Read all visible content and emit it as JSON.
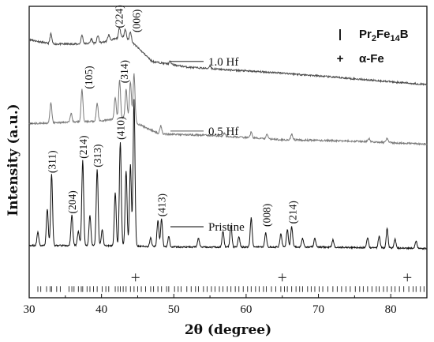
{
  "chart_data": {
    "type": "line",
    "xlabel": "2θ (degree)",
    "ylabel": "Intensity (a.u.)",
    "xlim": [
      30,
      85
    ],
    "xticks": [
      30,
      40,
      50,
      60,
      70,
      80
    ],
    "grid": false,
    "legend": {
      "placement": "top-right",
      "entries": [
        {
          "marker": "|",
          "label_main": "Pr",
          "sub1": "2",
          "label_mid": "Fe",
          "sub2": "14",
          "label_end": "B"
        },
        {
          "marker": "+",
          "label": "α-Fe"
        }
      ]
    },
    "series": [
      {
        "name": "1.0 Hf",
        "color": "#4a4a4a",
        "baseline": [
          [
            30,
            7.45
          ],
          [
            33,
            7.3
          ],
          [
            37,
            7.3
          ],
          [
            40,
            7.35
          ],
          [
            43,
            7.55
          ],
          [
            44.5,
            7.3
          ],
          [
            47,
            6.7
          ],
          [
            52,
            6.5
          ],
          [
            58,
            6.4
          ],
          [
            65,
            6.3
          ],
          [
            75,
            6.1
          ],
          [
            85,
            5.9
          ]
        ],
        "peaks": [
          [
            33.0,
            0.35
          ],
          [
            37.3,
            0.3
          ],
          [
            38.6,
            0.15
          ],
          [
            39.5,
            0.25
          ],
          [
            41.0,
            0.2
          ],
          [
            42.5,
            0.35
          ],
          [
            43.3,
            0.3
          ],
          [
            44.0,
            0.35
          ],
          [
            49.5,
            0.1
          ],
          [
            55.0,
            0.1
          ]
        ],
        "noise": 0.06
      },
      {
        "name": "0.5 Hf",
        "color": "#7a7a7a",
        "baseline": [
          [
            30,
            4.55
          ],
          [
            40,
            4.65
          ],
          [
            44,
            4.8
          ],
          [
            45,
            4.55
          ],
          [
            48,
            4.2
          ],
          [
            55,
            4.15
          ],
          [
            65,
            4.0
          ],
          [
            75,
            3.95
          ],
          [
            85,
            3.85
          ]
        ],
        "peaks": [
          [
            33.0,
            0.7
          ],
          [
            35.8,
            0.3
          ],
          [
            37.3,
            1.1
          ],
          [
            39.4,
            0.6
          ],
          [
            41.9,
            0.75
          ],
          [
            42.5,
            1.3
          ],
          [
            43.4,
            0.95
          ],
          [
            44.0,
            1.2
          ],
          [
            44.5,
            1.6
          ],
          [
            48.2,
            0.3
          ],
          [
            57.0,
            0.1
          ],
          [
            60.7,
            0.2
          ],
          [
            62.9,
            0.15
          ],
          [
            66.3,
            0.2
          ],
          [
            77.0,
            0.1
          ],
          [
            79.5,
            0.15
          ]
        ],
        "noise": 0.06
      },
      {
        "name": "Pristine",
        "color": "#111111",
        "baseline": [
          [
            30,
            0.35
          ],
          [
            40,
            0.35
          ],
          [
            50,
            0.3
          ],
          [
            60,
            0.3
          ],
          [
            70,
            0.3
          ],
          [
            85,
            0.25
          ]
        ],
        "peaks": [
          [
            31.2,
            0.45
          ],
          [
            32.5,
            1.25
          ],
          [
            33.1,
            2.45
          ],
          [
            35.9,
            1.05
          ],
          [
            36.8,
            0.5
          ],
          [
            37.4,
            2.95
          ],
          [
            38.4,
            1.05
          ],
          [
            39.4,
            2.65
          ],
          [
            40.1,
            0.55
          ],
          [
            41.9,
            1.85
          ],
          [
            42.6,
            3.6
          ],
          [
            43.4,
            2.6
          ],
          [
            44.0,
            2.8
          ],
          [
            44.5,
            5.05
          ],
          [
            46.8,
            0.3
          ],
          [
            47.8,
            0.9
          ],
          [
            48.3,
            0.95
          ],
          [
            49.3,
            0.35
          ],
          [
            53.4,
            0.3
          ],
          [
            56.8,
            0.55
          ],
          [
            57.9,
            0.75
          ],
          [
            59.0,
            0.35
          ],
          [
            60.7,
            1.0
          ],
          [
            62.7,
            0.5
          ],
          [
            64.8,
            0.45
          ],
          [
            65.7,
            0.6
          ],
          [
            66.3,
            0.7
          ],
          [
            67.8,
            0.3
          ],
          [
            69.5,
            0.3
          ],
          [
            72.0,
            0.25
          ],
          [
            76.8,
            0.35
          ],
          [
            78.4,
            0.4
          ],
          [
            79.5,
            0.65
          ],
          [
            80.6,
            0.3
          ],
          [
            83.5,
            0.25
          ]
        ],
        "noise": 0.05
      }
    ],
    "peak_labels": [
      {
        "text": "(224)",
        "x": 42.4,
        "y": 7.85
      },
      {
        "text": "(006)",
        "x": 44.8,
        "y": 7.7
      },
      {
        "text": "(105)",
        "x": 38.2,
        "y": 5.75
      },
      {
        "text": "(314)",
        "x": 43.1,
        "y": 5.95
      },
      {
        "text": "(311)",
        "x": 33.1,
        "y": 2.85
      },
      {
        "text": "(204)",
        "x": 35.9,
        "y": 1.45
      },
      {
        "text": "(214)",
        "x": 37.4,
        "y": 3.35
      },
      {
        "text": "(313)",
        "x": 39.4,
        "y": 3.05
      },
      {
        "text": "(410)",
        "x": 42.6,
        "y": 4.0
      },
      {
        "text": "(413)",
        "x": 48.3,
        "y": 1.35
      },
      {
        "text": "(008)",
        "x": 62.8,
        "y": 1.0
      },
      {
        "text": "(214)",
        "x": 66.4,
        "y": 1.1
      }
    ],
    "ref_pr2fe14b": [
      31.2,
      31.6,
      32.4,
      32.9,
      33.1,
      33.8,
      34.3,
      35.5,
      35.9,
      36.2,
      36.8,
      37.2,
      37.4,
      38.0,
      38.4,
      38.9,
      39.4,
      40.1,
      40.6,
      41.0,
      41.9,
      42.3,
      42.6,
      43.0,
      43.4,
      44.0,
      44.5,
      45.0,
      45.5,
      46.1,
      46.8,
      47.2,
      47.8,
      48.3,
      49.0,
      49.3,
      50.1,
      50.6,
      51.0,
      51.8,
      52.4,
      53.0,
      53.4,
      54.1,
      54.6,
      55.2,
      55.7,
      56.3,
      56.8,
      57.4,
      57.9,
      58.5,
      59.0,
      59.6,
      60.2,
      60.7,
      61.3,
      61.8,
      62.4,
      62.8,
      63.5,
      64.1,
      64.8,
      65.3,
      65.7,
      66.3,
      66.9,
      67.4,
      67.8,
      68.5,
      69.0,
      69.5,
      70.1,
      70.6,
      71.3,
      72.0,
      72.6,
      73.2,
      73.8,
      74.4,
      75.1,
      75.7,
      76.2,
      76.8,
      77.4,
      78.0,
      78.4,
      79.0,
      79.5,
      80.1,
      80.6,
      81.2,
      81.8,
      82.5,
      83.1,
      83.5,
      84.1,
      84.6
    ],
    "ref_alpha_fe": [
      44.7,
      65.0,
      82.3
    ],
    "ylim": [
      -1.45,
      8.6
    ]
  }
}
